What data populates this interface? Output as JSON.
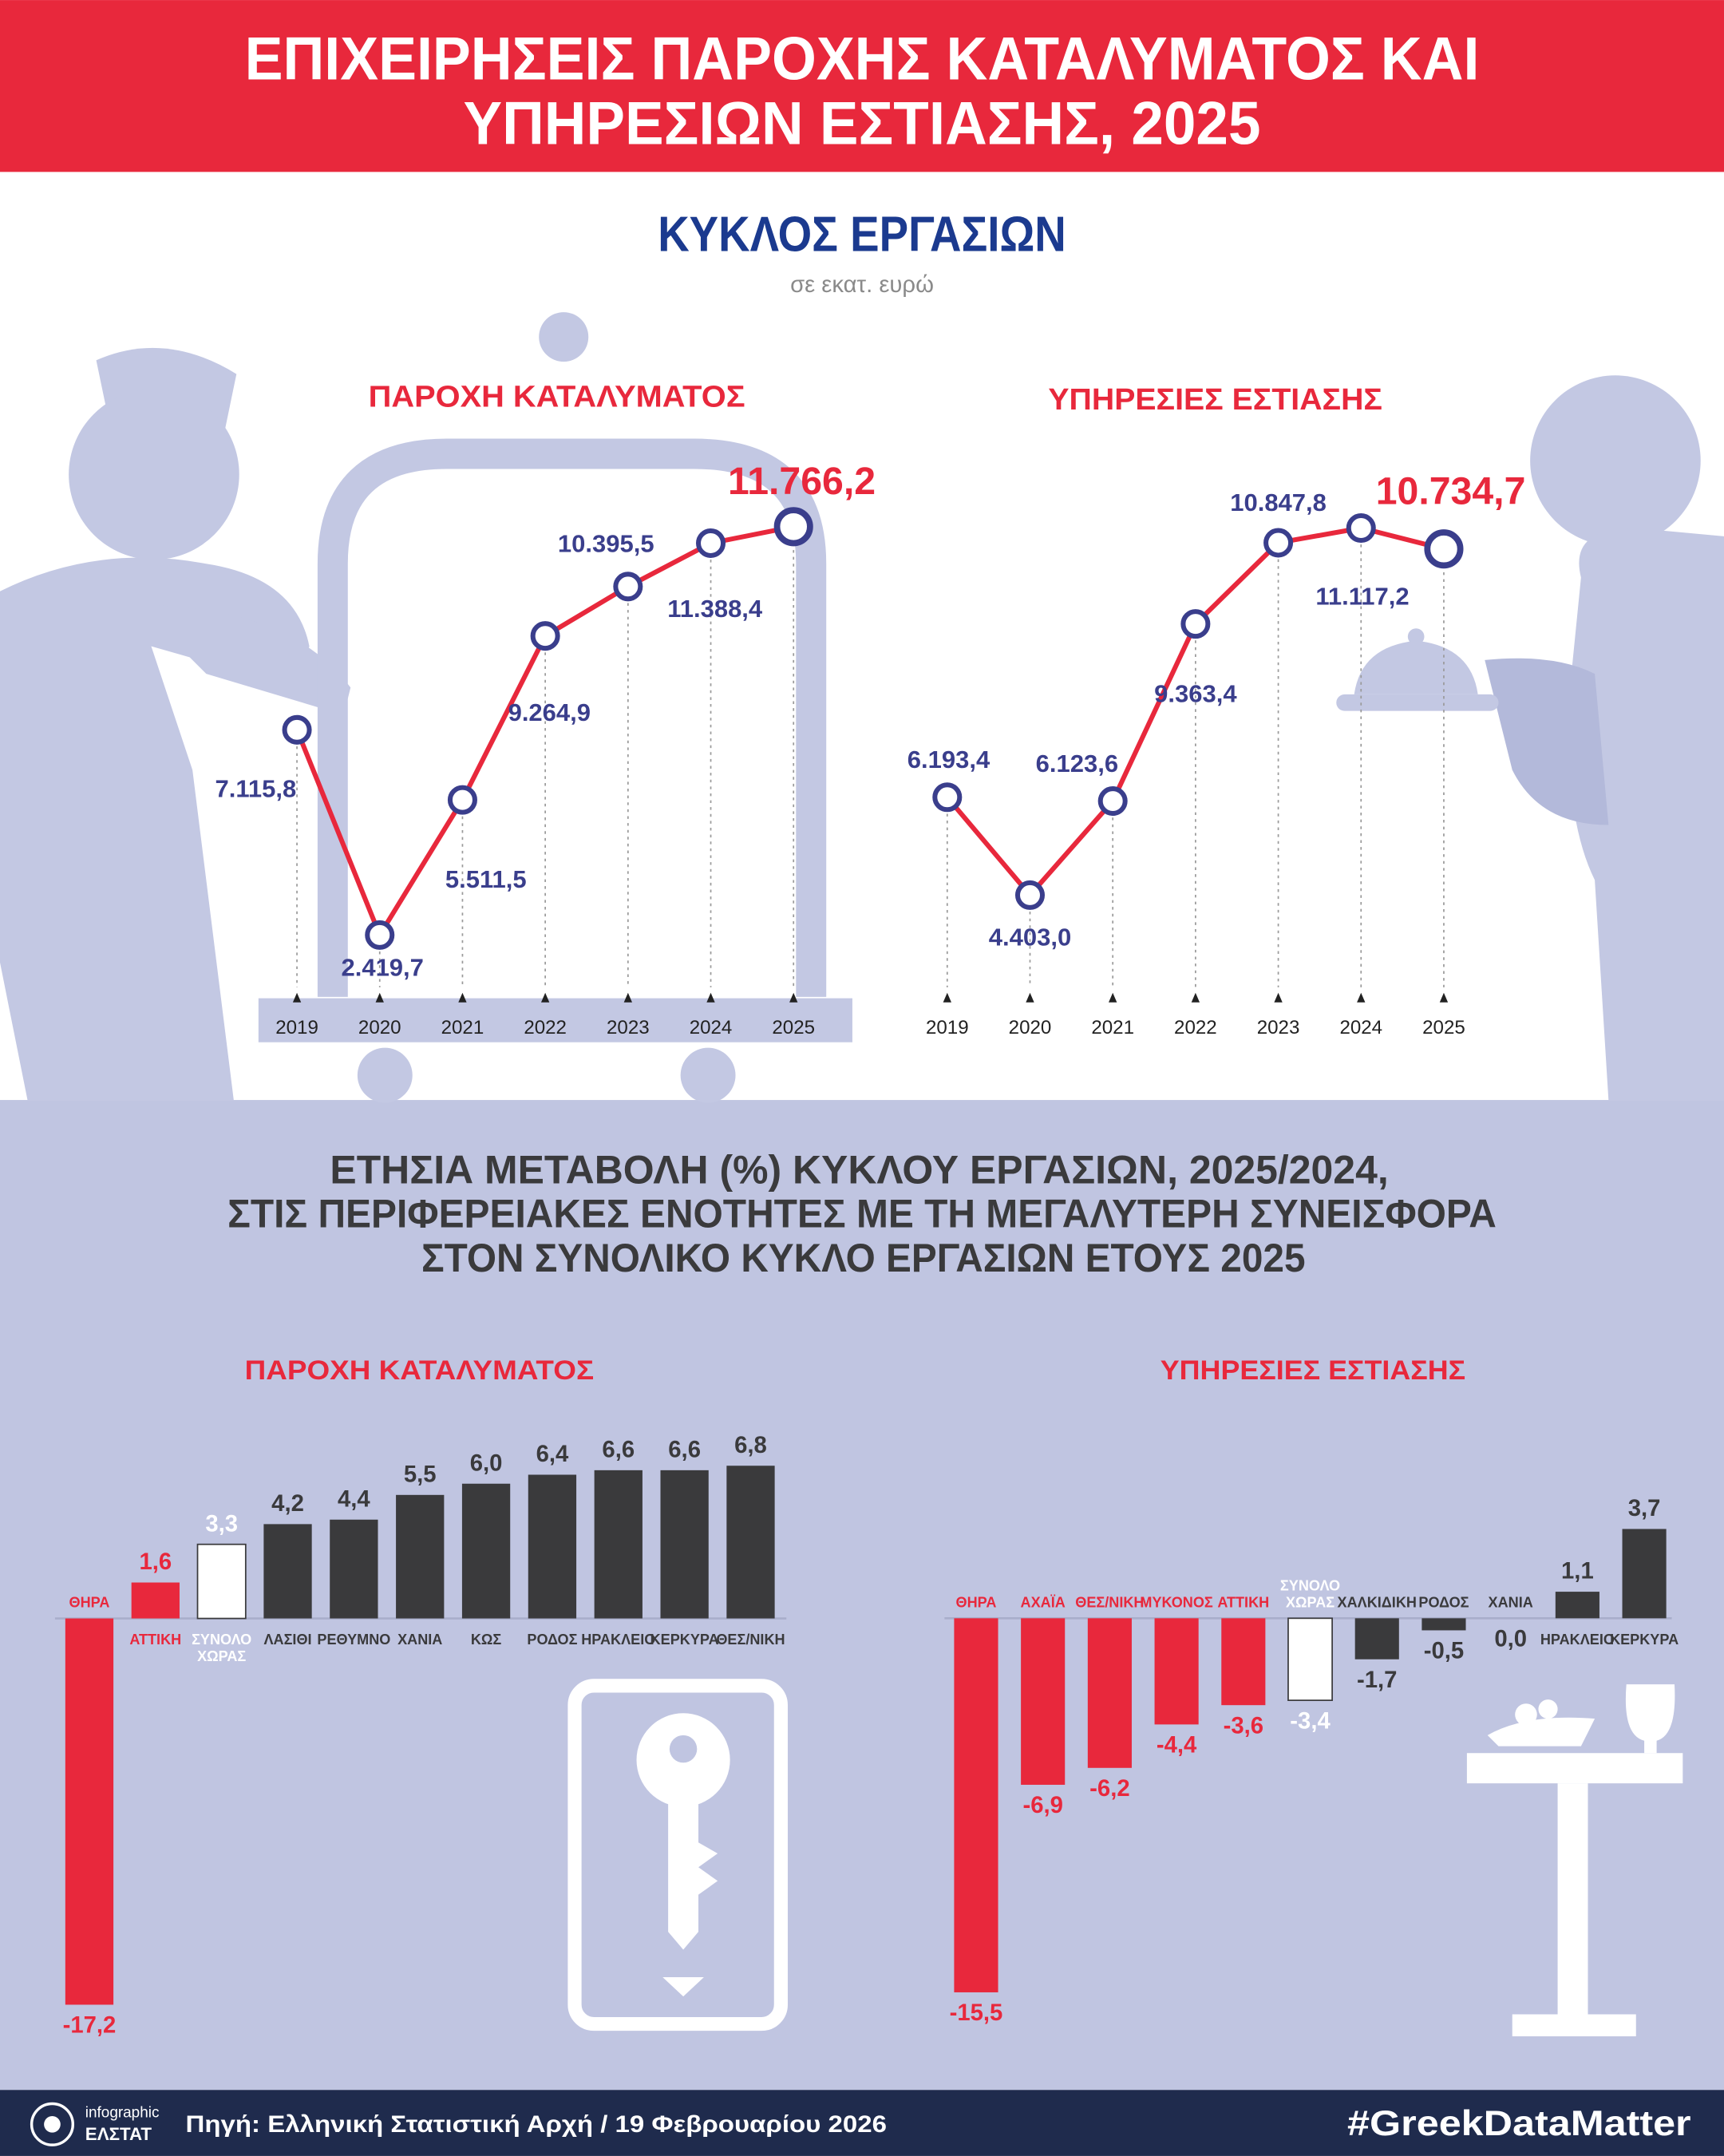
{
  "header": {
    "title": [
      "ΕΠΙΧΕΙΡΗΣΕΙΣ ΠΑΡΟΧΗΣ ΚΑΤΑΛΥΜΑΤΟΣ ΚΑΙ",
      "ΥΠΗΡΕΣΙΩΝ ΕΣΤΙΑΣΗΣ, 2025"
    ]
  },
  "section1": {
    "title": "ΚΥΚΛΟΣ ΕΡΓΑΣΙΩΝ",
    "subtitle": "σε εκατ. ευρώ"
  },
  "section2": {
    "title": [
      "ΕΤΗΣΙΑ ΜΕΤΑΒΟΛΗ (%) ΚΥΚΛΟΥ ΕΡΓΑΣΙΩΝ, 2025/2024,",
      "ΣΤΙΣ ΠΕΡΙΦΕΡΕΙΑΚΕΣ ΕΝΟΤΗΤΕΣ ΜΕ ΤΗ ΜΕΓΑΛΥΤΕΡΗ ΣΥΝΕΙΣΦΟΡΑ",
      "ΣΤΟΝ ΣΥΝΟΛΙΚΟ ΚΥΚΛΟ ΕΡΓΑΣΙΩΝ ΕΤΟΥΣ 2025"
    ]
  },
  "chart_data": [
    {
      "type": "line",
      "title": "ΠΑΡΟΧΗ ΚΑΤΑΛΥΜΑΤΟΣ",
      "categories": [
        "2019",
        "2020",
        "2021",
        "2022",
        "2023",
        "2024",
        "2025"
      ],
      "values": [
        7115.8,
        2419.7,
        5511.5,
        9264.9,
        10395.5,
        11388.4,
        11766.2
      ],
      "value_labels": [
        "7.115,8",
        "2.419,7",
        "5.511,5",
        "9.264,9",
        "10.395,5",
        "11.388,4",
        "11.766,2"
      ],
      "color": "#e8283c",
      "marker_color": "#3a3e8c"
    },
    {
      "type": "line",
      "title": "ΥΠΗΡΕΣΙΕΣ ΕΣΤΙΑΣΗΣ",
      "categories": [
        "2019",
        "2020",
        "2021",
        "2022",
        "2023",
        "2024",
        "2025"
      ],
      "values": [
        6193.4,
        4403.0,
        6123.6,
        9363.4,
        10847.8,
        11117.2,
        10734.7
      ],
      "value_labels": [
        "6.193,4",
        "4.403,0",
        "6.123,6",
        "9.363,4",
        "10.847,8",
        "11.117,2",
        "10.734,7"
      ],
      "color": "#e8283c",
      "marker_color": "#3a3e8c"
    },
    {
      "type": "bar",
      "title": "ΠΑΡΟΧΗ ΚΑΤΑΛΥΜΑΤΟΣ",
      "categories": [
        "ΘΗΡΑ",
        "ΑΤΤΙΚΗ",
        "ΣΥΝΟΛΟ ΧΩΡΑΣ",
        "ΛΑΣΙΘΙ",
        "ΡΕΘΥΜΝΟ",
        "ΧΑΝΙΑ",
        "ΚΩΣ",
        "ΡΟΔΟΣ",
        "ΗΡΑΚΛΕΙΟ",
        "ΚΕΡΚΥΡΑ",
        "ΘΕΣ/ΝΙΚΗ"
      ],
      "values": [
        -17.2,
        1.6,
        3.3,
        4.2,
        4.4,
        5.5,
        6.0,
        6.4,
        6.6,
        6.6,
        6.8
      ],
      "value_labels": [
        "-17,2",
        "1,6",
        "3,3",
        "4,2",
        "4,4",
        "5,5",
        "6,0",
        "6,4",
        "6,6",
        "6,6",
        "6,8"
      ],
      "colors": [
        "#e8283c",
        "#e8283c",
        "#ffffff",
        "#3a3a3c",
        "#3a3a3c",
        "#3a3a3c",
        "#3a3a3c",
        "#3a3a3c",
        "#3a3a3c",
        "#3a3a3c",
        "#3a3a3c"
      ]
    },
    {
      "type": "bar",
      "title": "ΥΠΗΡΕΣΙΕΣ ΕΣΤΙΑΣΗΣ",
      "categories": [
        "ΘΗΡΑ",
        "ΑΧΑΪΑ",
        "ΘΕΣ/ΝΙΚΗ",
        "ΜΥΚΟΝΟΣ",
        "ΑΤΤΙΚΗ",
        "ΣΥΝΟΛΟ ΧΩΡΑΣ",
        "ΧΑΛΚΙΔΙΚΗ",
        "ΡΟΔΟΣ",
        "ΧΑΝΙΑ",
        "ΗΡΑΚΛΕΙΟ",
        "ΚΕΡΚΥΡΑ"
      ],
      "values": [
        -15.5,
        -6.9,
        -6.2,
        -4.4,
        -3.6,
        -3.4,
        -1.7,
        -0.5,
        0.0,
        1.1,
        3.7
      ],
      "value_labels": [
        "-15,5",
        "-6,9",
        "-6,2",
        "-4,4",
        "-3,6",
        "-3,4",
        "-1,7",
        "-0,5",
        "0,0",
        "1,1",
        "3,7"
      ],
      "colors": [
        "#e8283c",
        "#e8283c",
        "#e8283c",
        "#e8283c",
        "#e8283c",
        "#ffffff",
        "#3a3a3c",
        "#3a3a3c",
        "#3a3a3c",
        "#3a3a3c",
        "#3a3a3c"
      ]
    }
  ],
  "footer": {
    "logo_top": "infographic",
    "logo_bottom": "ΕΛΣΤΑΤ",
    "source": "Πηγή: Ελληνική Στατιστική Αρχή  / 19 Φεβρουαρίου 2026",
    "hashtag": "#GreekDataMatter"
  }
}
